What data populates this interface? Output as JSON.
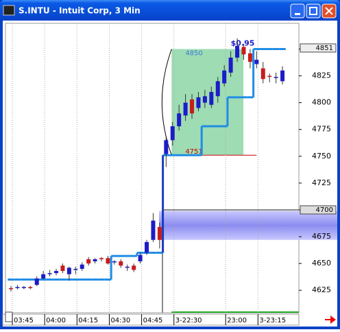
{
  "window_title": "S.INTU - Intuit Corp, 3 Min",
  "chart_data": {
    "type": "candlestick",
    "categories": [
      "03:45",
      null,
      null,
      null,
      null,
      "04:00",
      null,
      null,
      null,
      null,
      "04:15",
      null,
      null,
      null,
      null,
      "04:30",
      null,
      null,
      null,
      null,
      "04:45",
      null,
      null,
      null,
      null,
      "3-22:30",
      null,
      null,
      null,
      null,
      null,
      null,
      null,
      "23:00",
      null,
      null,
      null,
      null,
      "3-23:15",
      null,
      null,
      null,
      null
    ],
    "open": [
      4627,
      4627,
      4627,
      4628,
      4630,
      4636,
      4640,
      4641,
      4648,
      4640,
      4644,
      4645,
      4654,
      4652,
      4655,
      4655,
      4651,
      4652,
      4646,
      4648,
      4652,
      4660,
      4672,
      4684,
      4752,
      4765,
      4778,
      4788,
      4803,
      4795,
      4800,
      4798,
      4806,
      4818,
      4828,
      4842,
      4852,
      4846,
      4836,
      4832,
      4825,
      4823,
      4820
    ],
    "high": [
      4629,
      4630,
      4629,
      4629,
      4638,
      4643,
      4644,
      4645,
      4650,
      4647,
      4647,
      4651,
      4656,
      4655,
      4656,
      4657,
      4653,
      4654,
      4649,
      4650,
      4660,
      4672,
      4697,
      4688,
      4768,
      4782,
      4798,
      4808,
      4808,
      4810,
      4812,
      4815,
      4824,
      4835,
      4848,
      4860,
      4855,
      4850,
      4848,
      4838,
      4827,
      4828,
      4834
    ],
    "low": [
      4624,
      4626,
      4626,
      4626,
      4629,
      4635,
      4638,
      4639,
      4641,
      4634,
      4640,
      4643,
      4648,
      4650,
      4652,
      4649,
      4649,
      4646,
      4643,
      4642,
      4650,
      4658,
      4670,
      4664,
      4740,
      4760,
      4774,
      4783,
      4785,
      4792,
      4795,
      4795,
      4800,
      4815,
      4824,
      4838,
      4840,
      4832,
      4832,
      4818,
      4819,
      4818,
      4817
    ],
    "close": [
      4626,
      4628,
      4628,
      4627,
      4636,
      4640,
      4641,
      4643,
      4643,
      4646,
      4645,
      4649,
      4650,
      4654,
      4654,
      4650,
      4652,
      4648,
      4647,
      4644,
      4658,
      4670,
      4690,
      4672,
      4765,
      4778,
      4790,
      4800,
      4790,
      4805,
      4806,
      4810,
      4820,
      4830,
      4842,
      4853,
      4845,
      4838,
      4840,
      4822,
      4824,
      4824,
      4830
    ],
    "up_color": "#1c1cc8",
    "down_color": "#c81c1c",
    "stop_line": {
      "color": "#1e8ce6",
      "values": [
        4635,
        4635,
        4635,
        4635,
        4635,
        4635,
        4635,
        4635,
        4635,
        4635,
        4635,
        4635,
        4635,
        4635,
        4635,
        4635,
        4657,
        4657,
        4657,
        4657,
        4660,
        4660,
        4660,
        4660,
        4751,
        4751,
        4751,
        4751,
        4751,
        4751,
        4778,
        4778,
        4778,
        4778,
        4805,
        4805,
        4805,
        4805,
        4850,
        4850,
        4850,
        4850,
        4850
      ]
    },
    "range_box": {
      "high": 4850,
      "low": 4751,
      "label": "$0.95",
      "color": "#9edcb4"
    },
    "zone": [
      4672,
      4699
    ],
    "level": 4700,
    "price_markers": [
      4851,
      4700
    ],
    "ylim": [
      4604,
      4874
    ],
    "yticks": [
      4625,
      4650,
      4675,
      4700,
      4725,
      4750,
      4775,
      4800,
      4825,
      4850
    ]
  }
}
